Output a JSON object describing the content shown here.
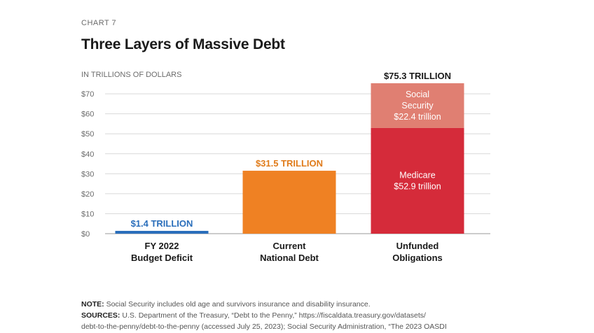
{
  "header": {
    "chart_number": "CHART 7",
    "title": "Three Layers of Massive Debt",
    "units": "IN TRILLIONS OF DOLLARS"
  },
  "chart_data": {
    "type": "bar",
    "title": "Three Layers of Massive Debt",
    "ylabel": "IN TRILLIONS OF DOLLARS",
    "ylim": [
      0,
      75.3
    ],
    "yticks": [
      0,
      10,
      20,
      30,
      40,
      50,
      60,
      70
    ],
    "ytick_labels": [
      "$0",
      "$10",
      "$20",
      "$30",
      "$40",
      "$50",
      "$60",
      "$70"
    ],
    "grid": true,
    "categories": [
      [
        "FY 2022",
        "Budget Deficit"
      ],
      [
        "Current",
        "National Debt"
      ],
      [
        "Unfunded",
        "Obligations"
      ]
    ],
    "bars": [
      {
        "total": 1.4,
        "total_label": "$1.4 TRILLION",
        "label_color": "#2a6ebb",
        "segments": [
          {
            "value": 1.4,
            "color": "#2a6ebb"
          }
        ]
      },
      {
        "total": 31.5,
        "total_label": "$31.5 TRILLION",
        "label_color": "#e07b1a",
        "segments": [
          {
            "value": 31.5,
            "color": "#ef8123"
          }
        ]
      },
      {
        "total": 75.3,
        "total_label": "$75.3 TRILLION",
        "label_color": "#1a1a1a",
        "segments": [
          {
            "value": 52.9,
            "color": "#d52b3a",
            "label": [
              "Medicare",
              "$52.9 trillion"
            ]
          },
          {
            "value": 22.4,
            "color": "#e07f72",
            "label": [
              "Social",
              "Security",
              "$22.4 trillion"
            ]
          }
        ]
      }
    ]
  },
  "notes": {
    "note_label": "NOTE:",
    "note_text": " Social Security includes old age and survivors insurance and disability insurance.",
    "sources_label": "SOURCES:",
    "sources_text": " U.S. Department of the Treasury, “Debt to the Penny,” https://fiscaldata.treasury.gov/datasets/",
    "sources_line2": "debt-to-the-penny/debt-to-the-penny (accessed July 25, 2023); Social Security Administration, “The 2023 OASDI"
  },
  "colors": {
    "text": "#1a1a1a",
    "muted": "#6b6b6b",
    "grid": "#d9d9d9"
  }
}
